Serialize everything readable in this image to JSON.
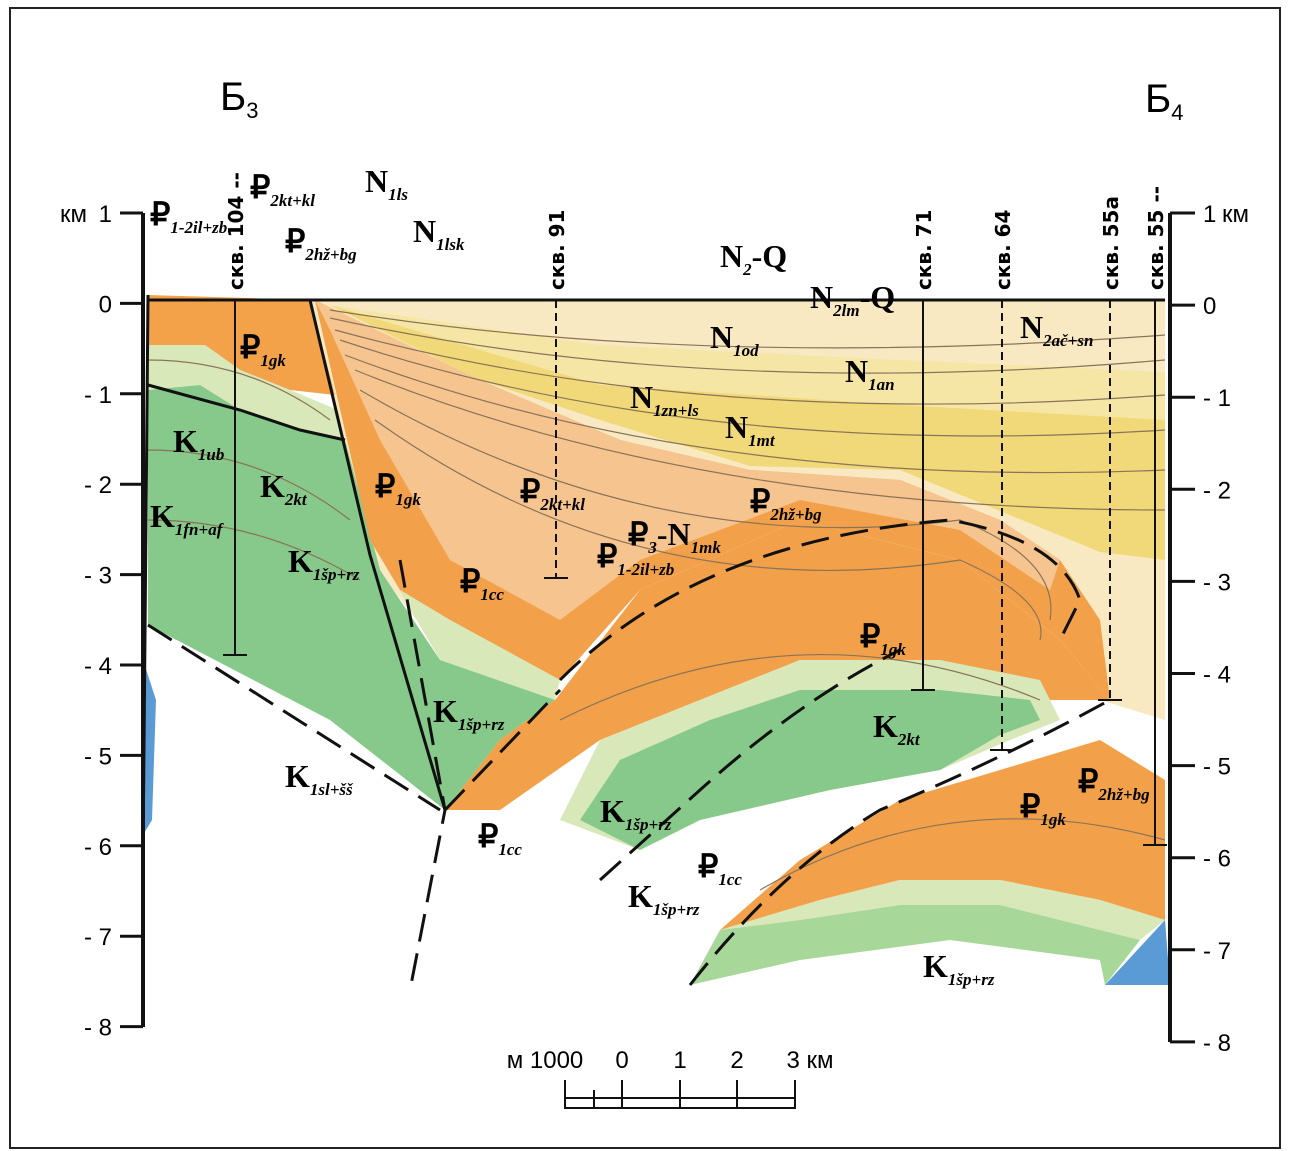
{
  "section_ends": [
    {
      "main": "Б",
      "sub": "3"
    },
    {
      "main": "Б",
      "sub": "4"
    }
  ],
  "wells": [
    "скв. 104 --",
    "скв. 91",
    "скв. 71",
    "скв. 64",
    "скв. 55а",
    "скв. 55 --"
  ],
  "left_axis": {
    "unit": "км",
    "labels": [
      "1",
      "0",
      "- 1",
      "- 2",
      "- 3",
      "- 4",
      "- 5",
      "- 6",
      "- 7",
      "- 8"
    ]
  },
  "right_axis": {
    "unit": "км",
    "labels": [
      "1",
      "0",
      "- 1",
      "- 2",
      "- 3",
      "- 4",
      "- 5",
      "- 6",
      "- 7",
      "- 8"
    ]
  },
  "formations": [
    [
      "₽",
      "1-2il+zb"
    ],
    [
      "₽",
      "2kt+kl"
    ],
    [
      "₽",
      "2hž+bg"
    ],
    [
      "N",
      "1ls"
    ],
    [
      "N",
      "1lsk"
    ],
    [
      "N",
      "2",
      "-Q"
    ],
    [
      "N",
      "2lm",
      "-Q"
    ],
    [
      "N",
      "2ač+sn"
    ],
    [
      "N",
      "1od"
    ],
    [
      "N",
      "1an"
    ],
    [
      "N",
      "1zn+ls"
    ],
    [
      "N",
      "1mt"
    ],
    [
      "₽",
      "1gk"
    ],
    [
      "K",
      "1ub"
    ],
    [
      "K",
      "2kt"
    ],
    [
      "K",
      "1fn+af"
    ],
    [
      "K",
      "1šp+rz"
    ],
    [
      "₽",
      "1gk"
    ],
    [
      "₽",
      "2kt+kl"
    ],
    [
      "₽",
      "3",
      "-N",
      "1mk"
    ],
    [
      "₽",
      "2hž+bg"
    ],
    [
      "₽",
      "1-2il+zb"
    ],
    [
      "₽",
      "1cc"
    ],
    [
      "₽",
      "1gk"
    ],
    [
      "K",
      "1šp+rz"
    ],
    [
      "K",
      "2kt"
    ],
    [
      "K",
      "1sl+šš"
    ],
    [
      "₽",
      "2hž+bg"
    ],
    [
      "₽",
      "1gk"
    ],
    [
      "₽",
      "1cc"
    ],
    [
      "K",
      "1šp+rz"
    ],
    [
      "₽",
      "1cc"
    ],
    [
      "K",
      "1šp+rz"
    ],
    [
      "K",
      "1šp+rz"
    ]
  ],
  "scale": {
    "labels": [
      "м 1000",
      "0",
      "1",
      "2",
      "3 км"
    ]
  }
}
